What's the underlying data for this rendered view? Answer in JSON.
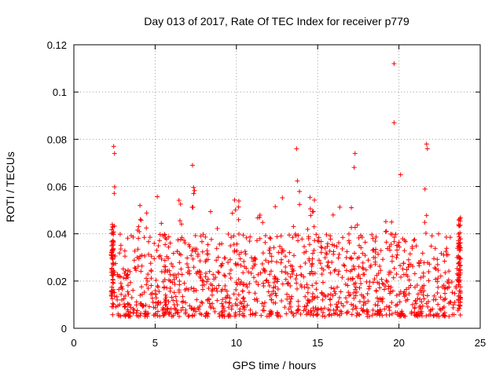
{
  "chart_data": {
    "type": "scatter",
    "title": "Day 013 of 2017, Rate Of TEC Index for receiver p779",
    "xlabel": "GPS time / hours",
    "ylabel": "ROTI / TECUs",
    "xlim": [
      0,
      25
    ],
    "ylim": [
      0,
      0.12
    ],
    "x_ticks": [
      0,
      5,
      10,
      15,
      20,
      25
    ],
    "x_tick_labels": [
      "0",
      "5",
      "10",
      "15",
      "20",
      "25"
    ],
    "y_ticks": [
      0,
      0.02,
      0.04,
      0.06,
      0.08,
      0.1,
      0.12
    ],
    "y_tick_labels": [
      "0",
      "0.02",
      "0.04",
      "0.06",
      "0.08",
      "0.1",
      "0.12"
    ],
    "grid": true,
    "marker": "plus",
    "color": "#ff0000",
    "x_data_range": [
      2.3,
      23.8
    ],
    "bulk_value_range": [
      0.005,
      0.04
    ],
    "notable_points": [
      {
        "x": 2.45,
        "y": 0.077
      },
      {
        "x": 2.5,
        "y": 0.074
      },
      {
        "x": 7.3,
        "y": 0.069
      },
      {
        "x": 13.7,
        "y": 0.076
      },
      {
        "x": 17.3,
        "y": 0.074
      },
      {
        "x": 19.7,
        "y": 0.112
      },
      {
        "x": 19.7,
        "y": 0.087
      },
      {
        "x": 20.1,
        "y": 0.065
      },
      {
        "x": 21.7,
        "y": 0.078
      },
      {
        "x": 21.75,
        "y": 0.076
      }
    ]
  }
}
